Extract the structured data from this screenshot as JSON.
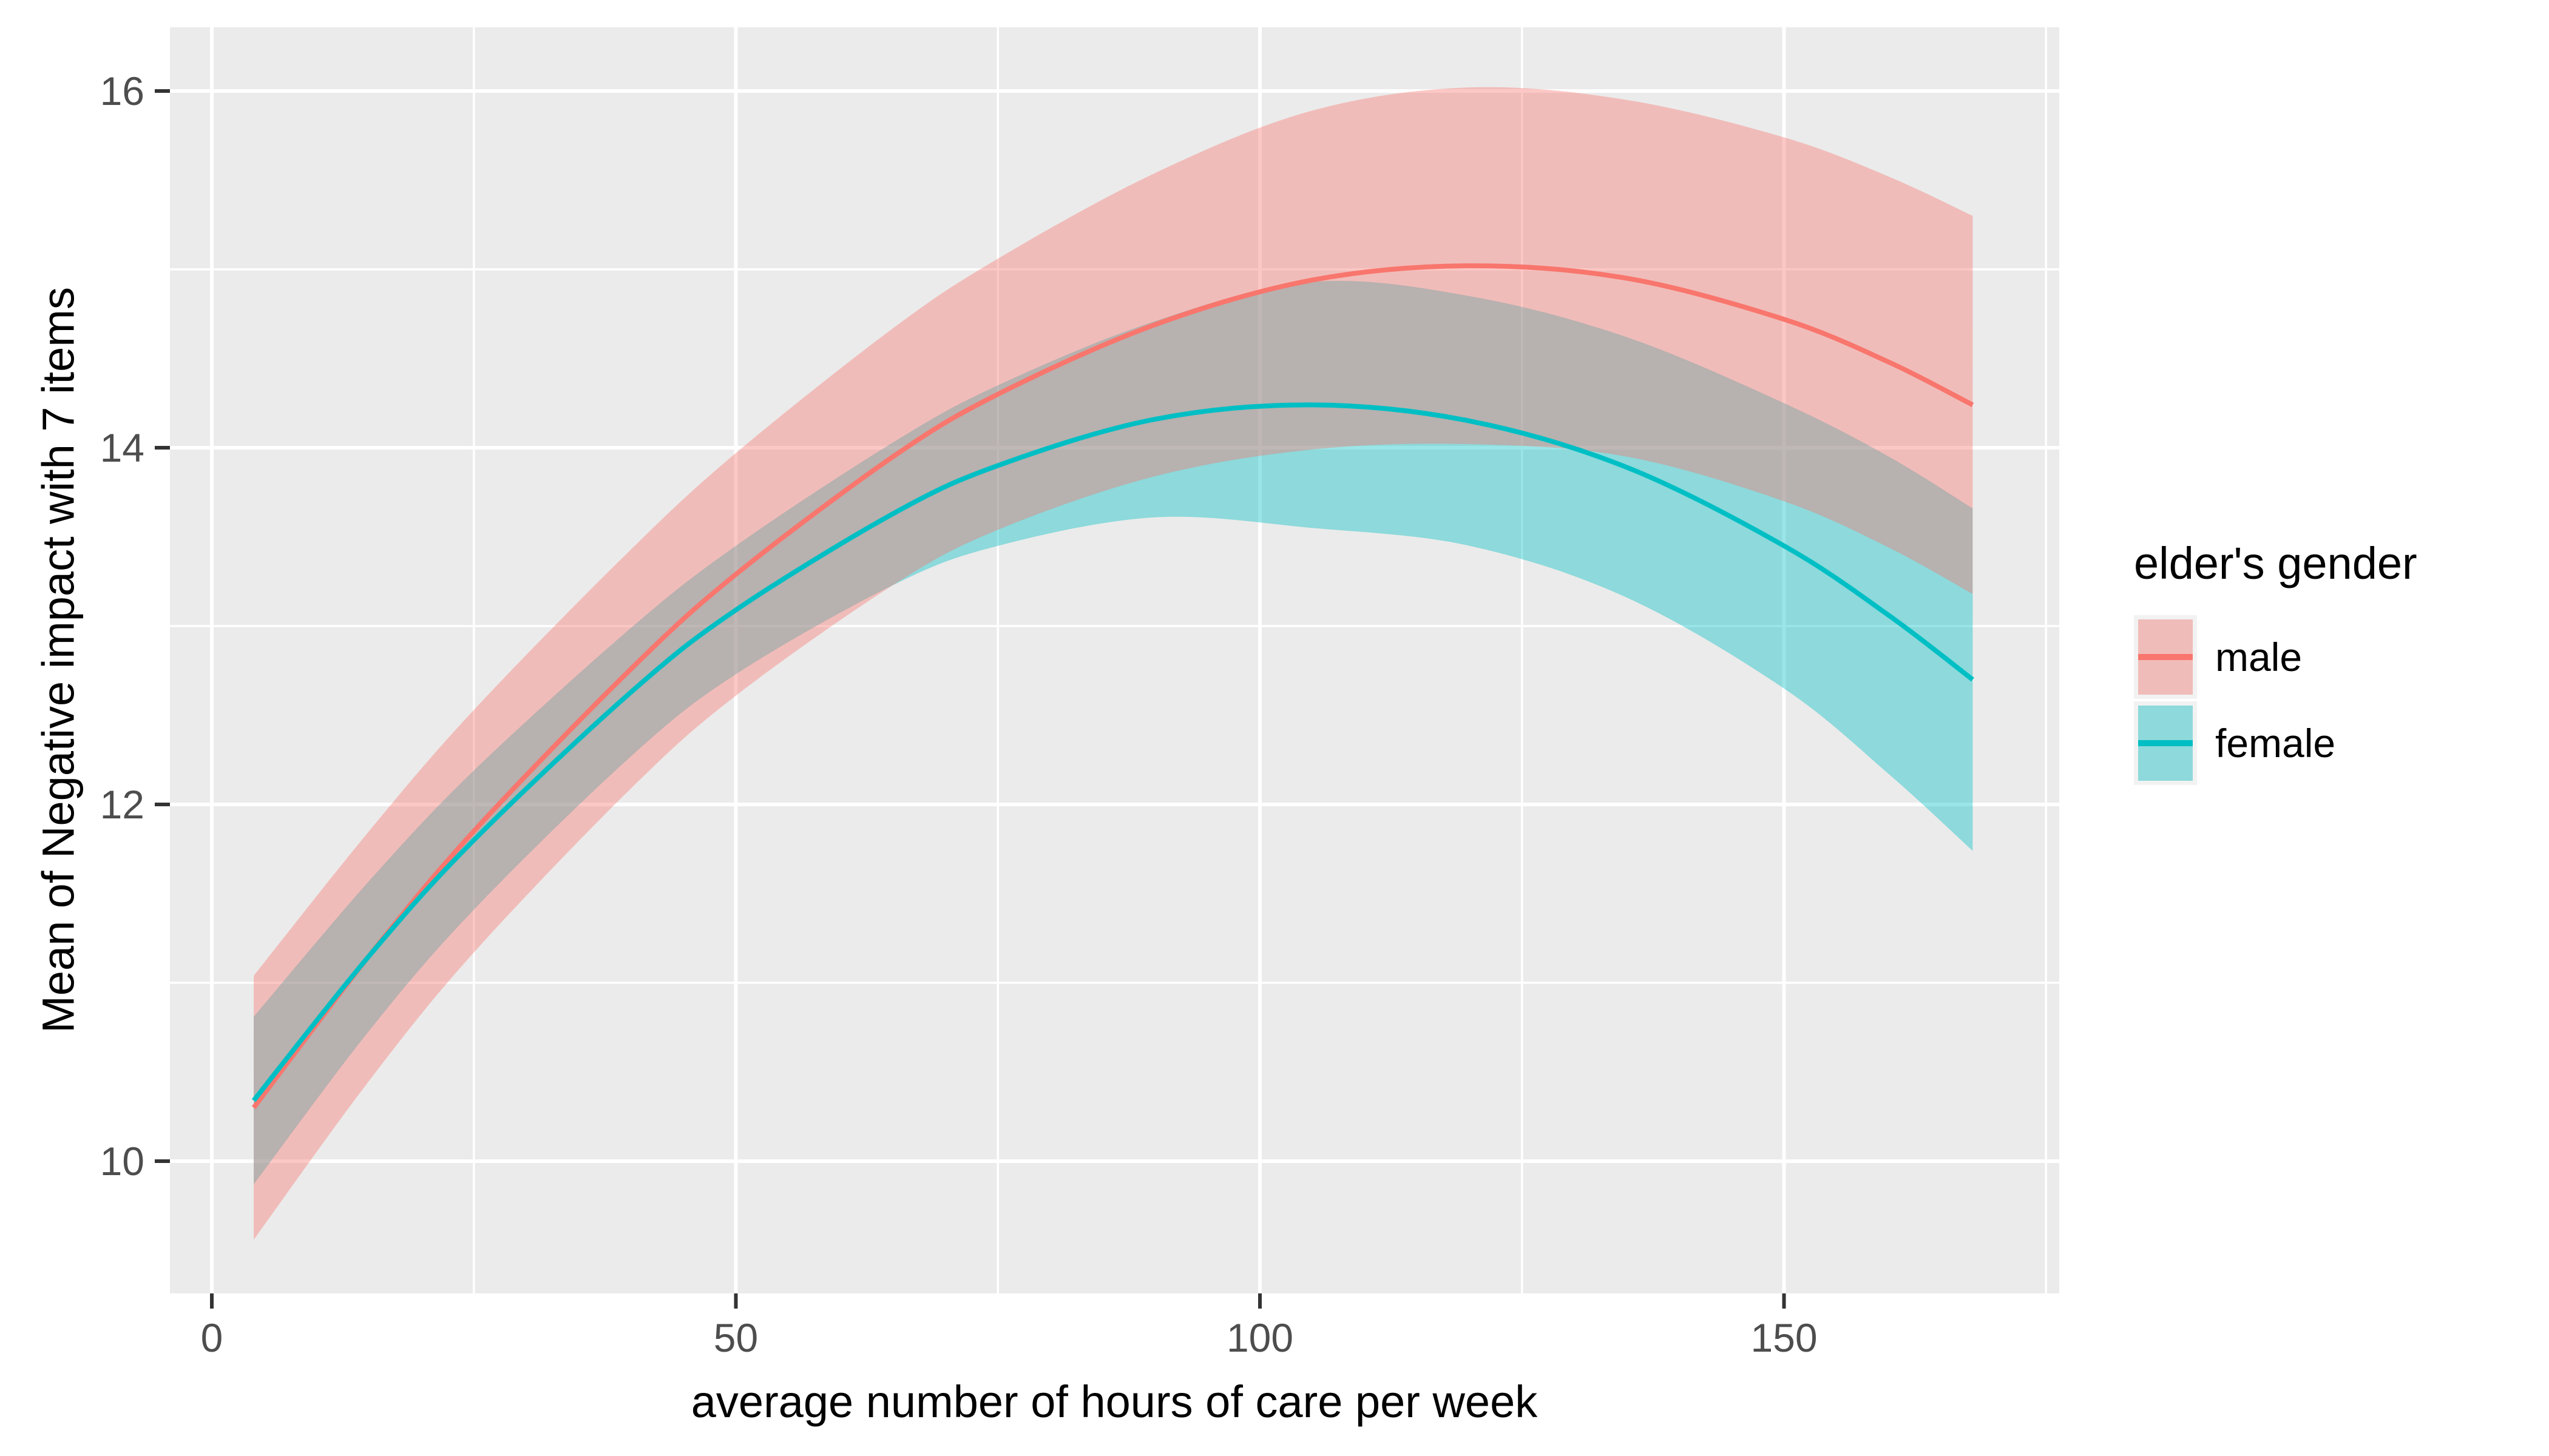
{
  "figure": {
    "background": "#FFFFFF",
    "panel_background": "#EBEBEB",
    "grid_color": "#FFFFFF",
    "tick_mark_color": "#333333",
    "axis_text_color": "#4D4D4D",
    "title_text_color": "#000000",
    "legend_key_background": "#F2F2F2"
  },
  "chart_data": {
    "type": "line",
    "title": "",
    "xlabel": "average number of hours of care per week",
    "ylabel": "Mean of Negative impact with 7 items",
    "grid": "on",
    "legend": {
      "title": "elder's gender",
      "position": "right",
      "items": [
        {
          "label": "male",
          "color": "#F8766D",
          "fill": "#F0BCB9"
        },
        {
          "label": "female",
          "color": "#00BFC4",
          "fill": "#8DD9DB"
        }
      ]
    },
    "x_axis": {
      "ticks": [
        0,
        50,
        100,
        150
      ],
      "tick_labels": [
        "0",
        "50",
        "100",
        "150"
      ],
      "minor_ticks": [
        25,
        75,
        125,
        175
      ],
      "range": [
        -4.2,
        176.4
      ]
    },
    "y_axis": {
      "ticks": [
        10,
        12,
        14,
        16
      ],
      "tick_labels": [
        "10",
        "12",
        "14",
        "16"
      ],
      "minor_ticks": [
        11,
        13,
        15
      ],
      "range": [
        9.26,
        16.36
      ]
    },
    "fill_alpha": 0.4,
    "x": [
      4,
      15,
      25,
      40,
      50,
      65,
      75,
      90,
      105,
      120,
      135,
      150,
      160,
      168
    ],
    "series": [
      {
        "name": "male",
        "color": "#F8766D",
        "y": [
          10.3,
          11.15,
          11.85,
          12.76,
          13.29,
          13.95,
          14.3,
          14.69,
          14.94,
          15.02,
          14.95,
          14.72,
          14.48,
          14.24
        ],
        "upper": [
          11.04,
          11.85,
          12.53,
          13.43,
          13.97,
          14.67,
          15.06,
          15.54,
          15.89,
          16.02,
          15.95,
          15.74,
          15.52,
          15.3
        ],
        "lower": [
          9.56,
          10.45,
          11.17,
          12.09,
          12.61,
          13.23,
          13.54,
          13.84,
          13.99,
          14.02,
          13.95,
          13.7,
          13.44,
          13.18
        ]
      },
      {
        "name": "female",
        "color": "#00BFC4",
        "y": [
          10.34,
          11.15,
          11.8,
          12.63,
          13.09,
          13.63,
          13.9,
          14.16,
          14.24,
          14.15,
          13.89,
          13.45,
          13.06,
          12.7
        ],
        "upper": [
          10.81,
          11.57,
          12.19,
          12.99,
          13.45,
          14.03,
          14.35,
          14.71,
          14.93,
          14.85,
          14.62,
          14.25,
          13.95,
          13.66
        ],
        "lower": [
          9.87,
          10.73,
          11.41,
          12.27,
          12.73,
          13.23,
          13.45,
          13.61,
          13.55,
          13.45,
          13.16,
          12.65,
          12.17,
          11.74
        ]
      }
    ]
  }
}
